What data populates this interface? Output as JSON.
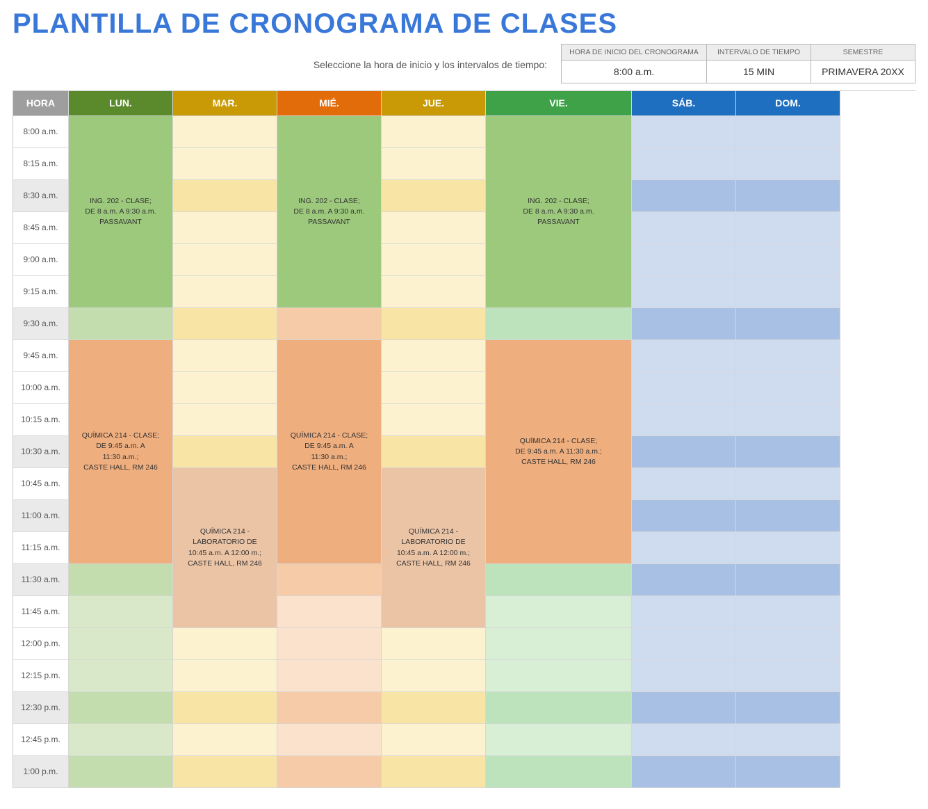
{
  "title": "PLANTILLA DE CRONOGRAMA DE CLASES",
  "prompt": "Seleccione la hora de inicio y los intervalos de tiempo:",
  "params": {
    "start_label": "HORA DE INICIO DEL CRONOGRAMA",
    "start_value": "8:00 a.m.",
    "interval_label": "INTERVALO DE TIEMPO",
    "interval_value": "15 MIN",
    "semester_label": "SEMESTRE",
    "semester_value": "PRIMAVERA 20XX"
  },
  "days": {
    "time_header": "HORA",
    "labels": [
      "LUN.",
      "MAR.",
      "MIÉ.",
      "JUE.",
      "VIE.",
      "SÁB.",
      "DOM."
    ],
    "header_colors": [
      "#5a8a2c",
      "#c99a06",
      "#e26b0a",
      "#c99a06",
      "#3fa248",
      "#1f6fc0",
      "#1f6fc0"
    ],
    "cell_light": [
      "#d8e8c8",
      "#fcf2d0",
      "#fbe2cc",
      "#fcf2d0",
      "#d8efd6",
      "#cfdcf0",
      "#cfdcf0"
    ],
    "cell_dark": [
      "#c4ddae",
      "#f8e5a6",
      "#f6cba8",
      "#f8e5a6",
      "#bde3bc",
      "#a8c0e4",
      "#a8c0e4"
    ]
  },
  "times": [
    "8:00 a.m.",
    "8:15 a.m.",
    "8:30 a.m.",
    "8:45 a.m.",
    "9:00 a.m.",
    "9:15 a.m.",
    "9:30 a.m.",
    "9:45 a.m.",
    "10:00 a.m.",
    "10:15 a.m.",
    "10:30 a.m.",
    "10:45 a.m.",
    "11:00 a.m.",
    "11:15 a.m.",
    "11:30 a.m.",
    "11:45 a.m.",
    "12:00 p.m.",
    "12:15 p.m.",
    "12:30 p.m.",
    "12:45 p.m.",
    "1:00 p.m."
  ],
  "time_alt_rows": [
    2,
    6,
    10,
    12,
    14,
    18,
    20
  ],
  "blocks": [
    {
      "day": 0,
      "row": 0,
      "span": 6,
      "text": "ING. 202 - CLASE;\nDE 8 a.m. A 9:30 a.m.\nPASSAVANT",
      "color": "#9cc97c"
    },
    {
      "day": 2,
      "row": 0,
      "span": 6,
      "text": "ING. 202 - CLASE;\nDE 8 a.m. A 9:30 a.m.\nPASSAVANT",
      "color": "#9cc97c"
    },
    {
      "day": 4,
      "row": 0,
      "span": 6,
      "text": "ING. 202 - CLASE;\nDE 8 a.m. A 9:30 a.m.\nPASSAVANT",
      "color": "#9cc97c"
    },
    {
      "day": 0,
      "row": 7,
      "span": 7,
      "text": "QUÍMICA 214 - CLASE;\nDE 9:45 a.m. A\n11:30 a.m.;\nCASTE HALL, RM 246",
      "color": "#efae7e"
    },
    {
      "day": 2,
      "row": 7,
      "span": 7,
      "text": "QUÍMICA 214 - CLASE;\nDE 9:45 a.m. A\n11:30 a.m.;\nCASTE HALL, RM 246",
      "color": "#efae7e"
    },
    {
      "day": 4,
      "row": 7,
      "span": 7,
      "text": "QUÍMICA 214 - CLASE;\nDE 9:45 a.m. A 11:30 a.m.;\nCASTE HALL, RM 246",
      "color": "#efae7e"
    },
    {
      "day": 1,
      "row": 11,
      "span": 5,
      "text": "QUÍMICA 214 -\nLABORATORIO DE\n10:45 a.m. A 12:00 m.;\nCASTE HALL, RM 246",
      "color": "#ebc4a6"
    },
    {
      "day": 3,
      "row": 11,
      "span": 5,
      "text": "QUÍMICA 214 -\nLABORATORIO DE\n10:45 a.m. A 12:00 m.;\nCASTE HALL, RM 246",
      "color": "#ebc4a6"
    }
  ]
}
